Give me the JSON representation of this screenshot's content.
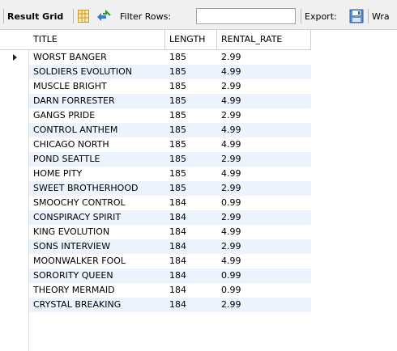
{
  "toolbar": {
    "result_grid_label": "Result Grid",
    "filter_label": "Filter Rows:",
    "filter_value": "",
    "export_label": "Export:",
    "wrap_label": "Wra"
  },
  "grid": {
    "columns": [
      "TITLE",
      "LENGTH",
      "RENTAL_RATE"
    ],
    "rows": [
      [
        "WORST BANGER",
        "185",
        "2.99"
      ],
      [
        "SOLDIERS EVOLUTION",
        "185",
        "4.99"
      ],
      [
        "MUSCLE BRIGHT",
        "185",
        "2.99"
      ],
      [
        "DARN FORRESTER",
        "185",
        "4.99"
      ],
      [
        "GANGS PRIDE",
        "185",
        "2.99"
      ],
      [
        "CONTROL ANTHEM",
        "185",
        "4.99"
      ],
      [
        "CHICAGO NORTH",
        "185",
        "4.99"
      ],
      [
        "POND SEATTLE",
        "185",
        "2.99"
      ],
      [
        "HOME PITY",
        "185",
        "4.99"
      ],
      [
        "SWEET BROTHERHOOD",
        "185",
        "2.99"
      ],
      [
        "SMOOCHY CONTROL",
        "184",
        "0.99"
      ],
      [
        "CONSPIRACY SPIRIT",
        "184",
        "2.99"
      ],
      [
        "KING EVOLUTION",
        "184",
        "4.99"
      ],
      [
        "SONS INTERVIEW",
        "184",
        "2.99"
      ],
      [
        "MOONWALKER FOOL",
        "184",
        "4.99"
      ],
      [
        "SORORITY QUEEN",
        "184",
        "0.99"
      ],
      [
        "THEORY MERMAID",
        "184",
        "0.99"
      ],
      [
        "CRYSTAL BREAKING",
        "184",
        "2.99"
      ]
    ],
    "current_row_index": 0
  },
  "colors": {
    "toolbar_bg": "#f0f0f0",
    "alt_row_bg": "#edf3fc",
    "grid_lines": "#d0d0d0"
  },
  "icons": [
    "grid-view-icon",
    "refresh-icon",
    "export-icon",
    "row-pointer-icon"
  ]
}
